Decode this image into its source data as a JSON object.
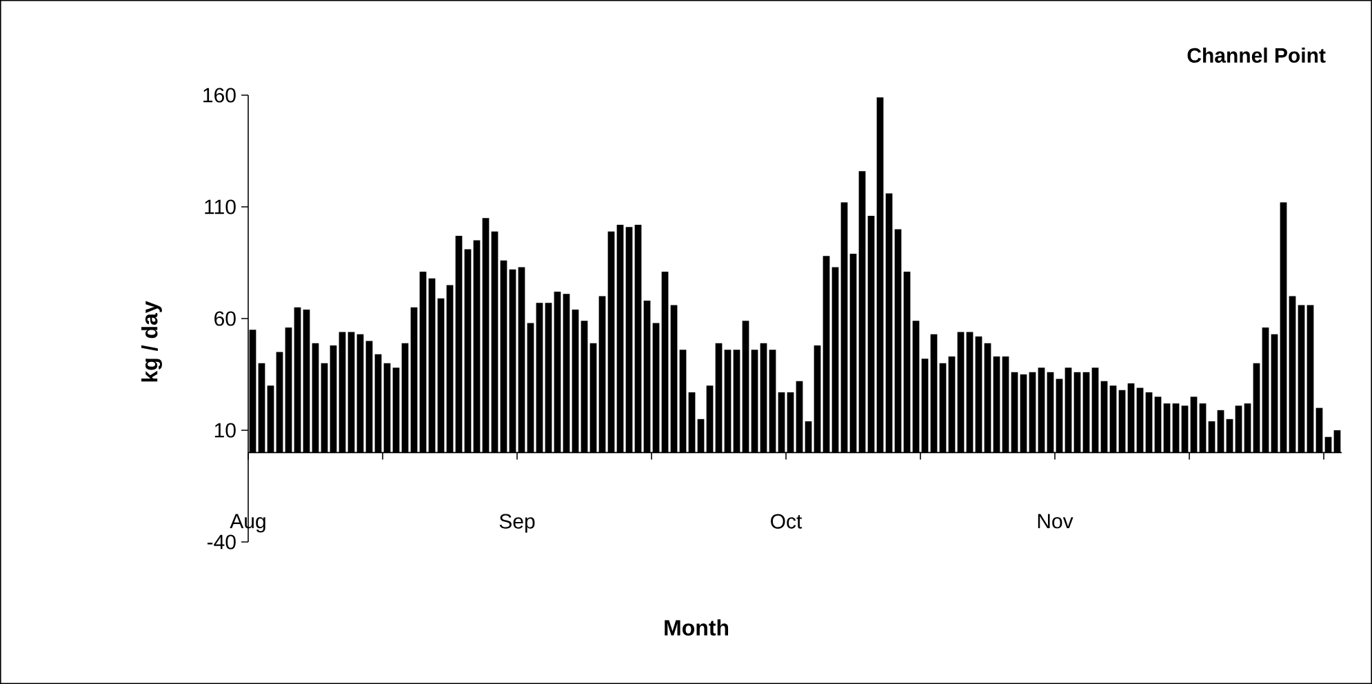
{
  "chart_data": {
    "type": "bar",
    "title": "Channel Point",
    "xlabel": "Month",
    "ylabel": "kg / day",
    "categories": [
      "Aug",
      null,
      null,
      null,
      null,
      null,
      null,
      null,
      null,
      null,
      null,
      null,
      null,
      null,
      null,
      null,
      null,
      null,
      null,
      null,
      null,
      null,
      null,
      null,
      null,
      null,
      null,
      null,
      null,
      null,
      "Sep",
      null,
      null,
      null,
      null,
      null,
      null,
      null,
      null,
      null,
      null,
      null,
      null,
      null,
      null,
      null,
      null,
      null,
      null,
      null,
      null,
      null,
      null,
      null,
      null,
      null,
      null,
      null,
      null,
      null,
      "Oct",
      null,
      null,
      null,
      null,
      null,
      null,
      null,
      null,
      null,
      null,
      null,
      null,
      null,
      null,
      null,
      null,
      null,
      null,
      null,
      null,
      null,
      null,
      null,
      null,
      null,
      null,
      null,
      null,
      null,
      "Nov",
      null,
      null,
      null,
      null,
      null,
      null,
      null,
      null,
      null,
      null,
      null,
      null,
      null,
      null,
      null,
      null,
      null,
      null,
      null,
      null,
      null,
      null,
      null,
      null,
      null,
      null,
      null,
      null,
      null,
      null,
      null
    ],
    "values": [
      55,
      40,
      30,
      45,
      56,
      65,
      64,
      49,
      40,
      48,
      54,
      54,
      53,
      50,
      44,
      40,
      38,
      49,
      65,
      81,
      78,
      69,
      75,
      97,
      91,
      95,
      105,
      99,
      86,
      82,
      83,
      58,
      67,
      67,
      72,
      71,
      64,
      59,
      49,
      70,
      99,
      102,
      101,
      102,
      68,
      58,
      81,
      66,
      46,
      27,
      15,
      30,
      49,
      46,
      46,
      59,
      46,
      49,
      46,
      27,
      27,
      32,
      14,
      48,
      88,
      83,
      112,
      89,
      126,
      106,
      159,
      116,
      100,
      81,
      59,
      42,
      53,
      40,
      43,
      54,
      54,
      52,
      49,
      43,
      43,
      36,
      35,
      36,
      38,
      36,
      33,
      38,
      36,
      36,
      38,
      32,
      30,
      28,
      31,
      29,
      27,
      25,
      22,
      22,
      21,
      25,
      22,
      14,
      19,
      15,
      21,
      22,
      40,
      56,
      53,
      112,
      70,
      66,
      66,
      20,
      7,
      10
    ],
    "color": "#000000",
    "ylim": [
      -40,
      160
    ],
    "yticks": [
      -40,
      10,
      60,
      110,
      160
    ]
  }
}
